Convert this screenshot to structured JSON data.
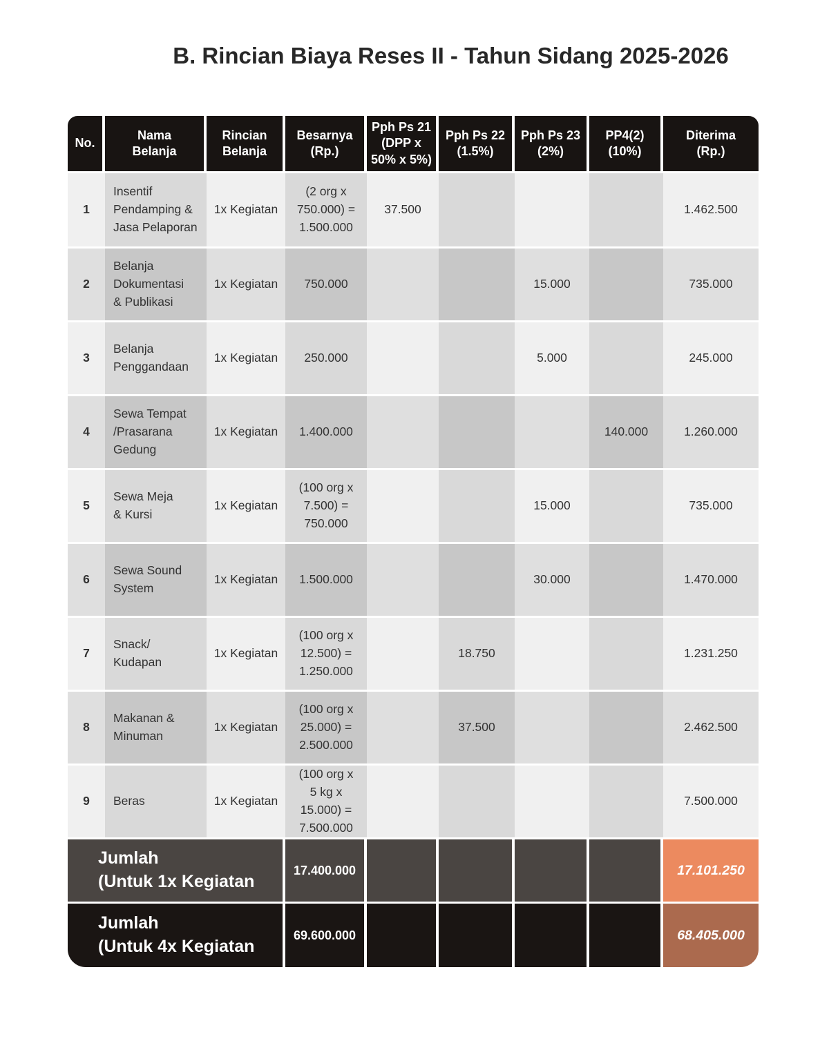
{
  "title": "B. Rincian Biaya Reses II - Tahun Sidang 2025-2026",
  "colors": {
    "header-bg": "#181412",
    "body-text": "#333333",
    "g1": "#f0f0f0",
    "g2": "#d9d9d9",
    "g3": "#dfdfdf",
    "g4": "#c7c7c7",
    "footer1-bg": "#4a4542",
    "footer2-bg": "#1a1513",
    "accent-orange": "#ec8a5f",
    "accent-brown": "#ab6a4e"
  },
  "table": {
    "columns": [
      {
        "label": "No."
      },
      {
        "label": "Nama\nBelanja"
      },
      {
        "label": "Rincian\nBelanja"
      },
      {
        "label": "Besarnya\n(Rp.)"
      },
      {
        "label": "Pph Ps 21\n(DPP x\n50% x 5%)"
      },
      {
        "label": "Pph Ps 22\n(1.5%)"
      },
      {
        "label": "Pph Ps 23\n(2%)"
      },
      {
        "label": "PP4(2)\n(10%)"
      },
      {
        "label": "Diterima\n(Rp.)"
      }
    ],
    "rows": [
      {
        "no": "1",
        "nama": "Insentif\nPendamping &\nJasa Pelaporan",
        "rincian": "1x Kegiatan",
        "besarnya": "(2 org x\n750.000) =\n1.500.000",
        "pph21": "37.500",
        "pph22": "",
        "pph23": "",
        "pp4": "",
        "diterima": "1.462.500"
      },
      {
        "no": "2",
        "nama": "Belanja\nDokumentasi\n& Publikasi",
        "rincian": "1x Kegiatan",
        "besarnya": "750.000",
        "pph21": "",
        "pph22": "",
        "pph23": "15.000",
        "pp4": "",
        "diterima": "735.000"
      },
      {
        "no": "3",
        "nama": "Belanja\nPenggandaan",
        "rincian": "1x Kegiatan",
        "besarnya": "250.000",
        "pph21": "",
        "pph22": "",
        "pph23": "5.000",
        "pp4": "",
        "diterima": "245.000"
      },
      {
        "no": "4",
        "nama": "Sewa Tempat\n/Prasarana\nGedung",
        "rincian": "1x Kegiatan",
        "besarnya": "1.400.000",
        "pph21": "",
        "pph22": "",
        "pph23": "",
        "pp4": "140.000",
        "diterima": "1.260.000"
      },
      {
        "no": "5",
        "nama": "Sewa Meja\n& Kursi",
        "rincian": "1x Kegiatan",
        "besarnya": "(100 org x\n7.500) =\n750.000",
        "pph21": "",
        "pph22": "",
        "pph23": "15.000",
        "pp4": "",
        "diterima": "735.000"
      },
      {
        "no": "6",
        "nama": "Sewa Sound\nSystem",
        "rincian": "1x Kegiatan",
        "besarnya": "1.500.000",
        "pph21": "",
        "pph22": "",
        "pph23": "30.000",
        "pp4": "",
        "diterima": "1.470.000"
      },
      {
        "no": "7",
        "nama": "Snack/\nKudapan",
        "rincian": "1x Kegiatan",
        "besarnya": "(100 org x\n12.500) =\n1.250.000",
        "pph21": "",
        "pph22": "18.750",
        "pph23": "",
        "pp4": "",
        "diterima": "1.231.250"
      },
      {
        "no": "8",
        "nama": "Makanan &\nMinuman",
        "rincian": "1x Kegiatan",
        "besarnya": "(100 org x\n25.000) =\n2.500.000",
        "pph21": "",
        "pph22": "37.500",
        "pph23": "",
        "pp4": "",
        "diterima": "2.462.500"
      },
      {
        "no": "9",
        "nama": "Beras",
        "rincian": "1x Kegiatan",
        "besarnya": "(100 org x\n5 kg x\n15.000) =\n7.500.000",
        "pph21": "",
        "pph22": "",
        "pph23": "",
        "pp4": "",
        "diterima": "7.500.000"
      }
    ],
    "footers": [
      {
        "label": "Jumlah\n(Untuk 1x Kegiatan",
        "besarnya": "17.400.000",
        "pph21": "",
        "pph22": "",
        "pph23": "",
        "pp4": "",
        "diterima": "17.101.250"
      },
      {
        "label": "Jumlah\n(Untuk 4x Kegiatan",
        "besarnya": "69.600.000",
        "pph21": "",
        "pph22": "",
        "pph23": "",
        "pp4": "",
        "diterima": "68.405.000"
      }
    ]
  }
}
